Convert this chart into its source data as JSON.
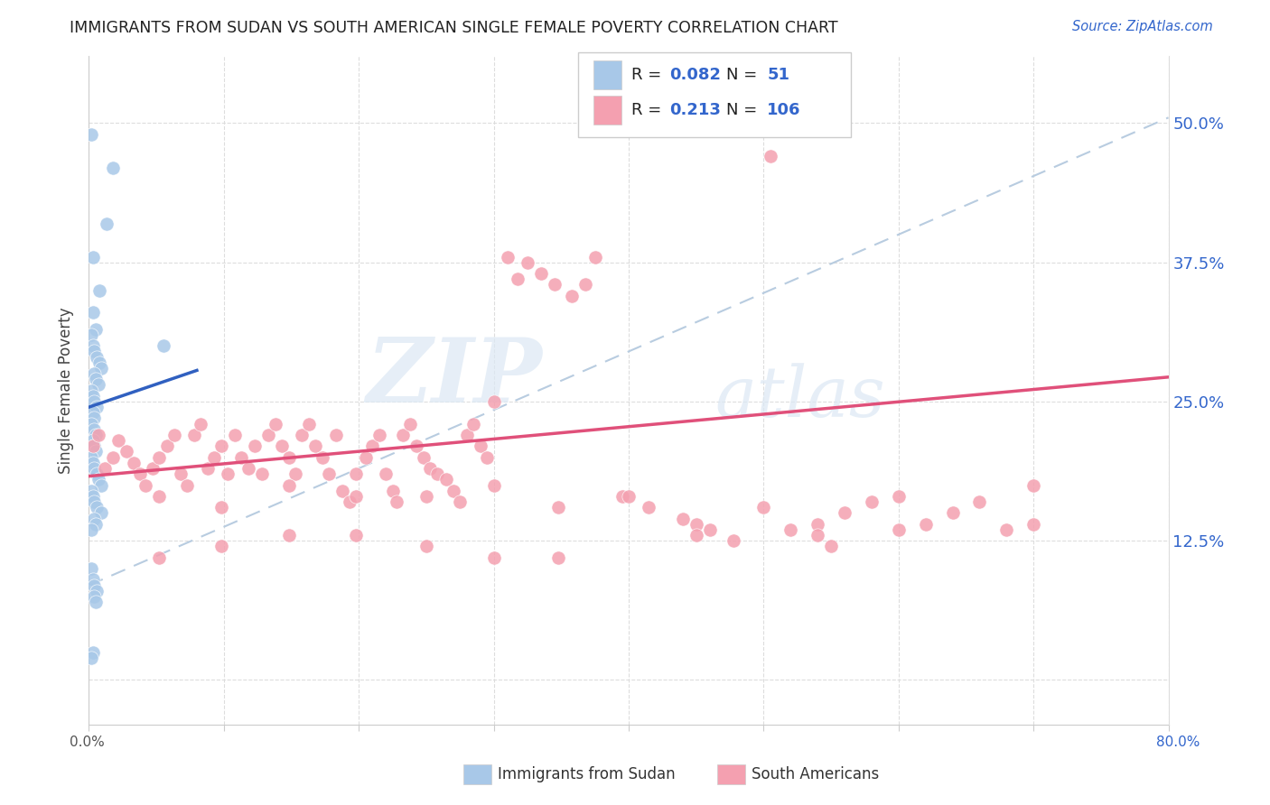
{
  "title": "IMMIGRANTS FROM SUDAN VS SOUTH AMERICAN SINGLE FEMALE POVERTY CORRELATION CHART",
  "source": "Source: ZipAtlas.com",
  "ylabel": "Single Female Poverty",
  "yticks": [
    0.0,
    0.125,
    0.25,
    0.375,
    0.5
  ],
  "ytick_labels": [
    "",
    "12.5%",
    "25.0%",
    "37.5%",
    "50.0%"
  ],
  "xlim": [
    0.0,
    0.8
  ],
  "ylim": [
    -0.04,
    0.56
  ],
  "color_blue": "#a8c8e8",
  "color_pink": "#f4a0b0",
  "color_blue_line": "#3060c0",
  "color_pink_line": "#e0507a",
  "color_dashed_line": "#b8cce0",
  "watermark_zip": "ZIP",
  "watermark_atlas": "atlas",
  "blue_x": [
    0.002,
    0.018,
    0.013,
    0.003,
    0.008,
    0.003,
    0.005,
    0.002,
    0.003,
    0.004,
    0.006,
    0.008,
    0.009,
    0.004,
    0.005,
    0.007,
    0.002,
    0.003,
    0.004,
    0.006,
    0.003,
    0.004,
    0.002,
    0.004,
    0.005,
    0.055,
    0.003,
    0.004,
    0.005,
    0.002,
    0.003,
    0.004,
    0.006,
    0.007,
    0.009,
    0.002,
    0.003,
    0.004,
    0.006,
    0.009,
    0.004,
    0.005,
    0.002,
    0.002,
    0.003,
    0.004,
    0.006,
    0.004,
    0.005,
    0.003,
    0.002
  ],
  "blue_y": [
    0.49,
    0.46,
    0.41,
    0.38,
    0.35,
    0.33,
    0.315,
    0.31,
    0.3,
    0.295,
    0.29,
    0.285,
    0.28,
    0.275,
    0.27,
    0.265,
    0.26,
    0.255,
    0.25,
    0.245,
    0.24,
    0.235,
    0.23,
    0.225,
    0.22,
    0.3,
    0.215,
    0.21,
    0.205,
    0.2,
    0.195,
    0.19,
    0.185,
    0.18,
    0.175,
    0.17,
    0.165,
    0.16,
    0.155,
    0.15,
    0.145,
    0.14,
    0.135,
    0.1,
    0.09,
    0.085,
    0.08,
    0.075,
    0.07,
    0.025,
    0.02
  ],
  "pink_x": [
    0.003,
    0.007,
    0.012,
    0.018,
    0.022,
    0.028,
    0.033,
    0.038,
    0.042,
    0.047,
    0.052,
    0.058,
    0.063,
    0.068,
    0.073,
    0.078,
    0.083,
    0.088,
    0.093,
    0.098,
    0.103,
    0.108,
    0.113,
    0.118,
    0.123,
    0.128,
    0.133,
    0.138,
    0.143,
    0.148,
    0.153,
    0.158,
    0.163,
    0.168,
    0.173,
    0.178,
    0.183,
    0.188,
    0.193,
    0.198,
    0.205,
    0.21,
    0.215,
    0.22,
    0.225,
    0.228,
    0.233,
    0.238,
    0.243,
    0.248,
    0.253,
    0.258,
    0.265,
    0.27,
    0.275,
    0.28,
    0.285,
    0.29,
    0.295,
    0.3,
    0.31,
    0.318,
    0.325,
    0.335,
    0.345,
    0.358,
    0.368,
    0.375,
    0.395,
    0.415,
    0.44,
    0.46,
    0.478,
    0.505,
    0.52,
    0.54,
    0.56,
    0.58,
    0.6,
    0.62,
    0.64,
    0.66,
    0.68,
    0.7,
    0.54,
    0.45,
    0.348,
    0.25,
    0.148,
    0.052,
    0.098,
    0.198,
    0.3,
    0.4,
    0.5,
    0.6,
    0.7,
    0.55,
    0.45,
    0.348,
    0.25,
    0.148,
    0.052,
    0.098,
    0.198,
    0.3
  ],
  "pink_y": [
    0.21,
    0.22,
    0.19,
    0.2,
    0.215,
    0.205,
    0.195,
    0.185,
    0.175,
    0.19,
    0.2,
    0.21,
    0.22,
    0.185,
    0.175,
    0.22,
    0.23,
    0.19,
    0.2,
    0.21,
    0.185,
    0.22,
    0.2,
    0.19,
    0.21,
    0.185,
    0.22,
    0.23,
    0.21,
    0.2,
    0.185,
    0.22,
    0.23,
    0.21,
    0.2,
    0.185,
    0.22,
    0.17,
    0.16,
    0.185,
    0.2,
    0.21,
    0.22,
    0.185,
    0.17,
    0.16,
    0.22,
    0.23,
    0.21,
    0.2,
    0.19,
    0.185,
    0.18,
    0.17,
    0.16,
    0.22,
    0.23,
    0.21,
    0.2,
    0.25,
    0.38,
    0.36,
    0.375,
    0.365,
    0.355,
    0.345,
    0.355,
    0.38,
    0.165,
    0.155,
    0.145,
    0.135,
    0.125,
    0.47,
    0.135,
    0.14,
    0.15,
    0.16,
    0.135,
    0.14,
    0.15,
    0.16,
    0.135,
    0.14,
    0.13,
    0.14,
    0.155,
    0.165,
    0.175,
    0.165,
    0.155,
    0.165,
    0.175,
    0.165,
    0.155,
    0.165,
    0.175,
    0.12,
    0.13,
    0.11,
    0.12,
    0.13,
    0.11,
    0.12,
    0.13,
    0.11
  ],
  "blue_line_x0": 0.0,
  "blue_line_y0": 0.245,
  "blue_line_x1": 0.08,
  "blue_line_y1": 0.278,
  "pink_line_x0": 0.0,
  "pink_line_y0": 0.183,
  "pink_line_x1": 0.8,
  "pink_line_y1": 0.272,
  "dash_line_x0": 0.0,
  "dash_line_y0": 0.085,
  "dash_line_x1": 0.8,
  "dash_line_y1": 0.505
}
